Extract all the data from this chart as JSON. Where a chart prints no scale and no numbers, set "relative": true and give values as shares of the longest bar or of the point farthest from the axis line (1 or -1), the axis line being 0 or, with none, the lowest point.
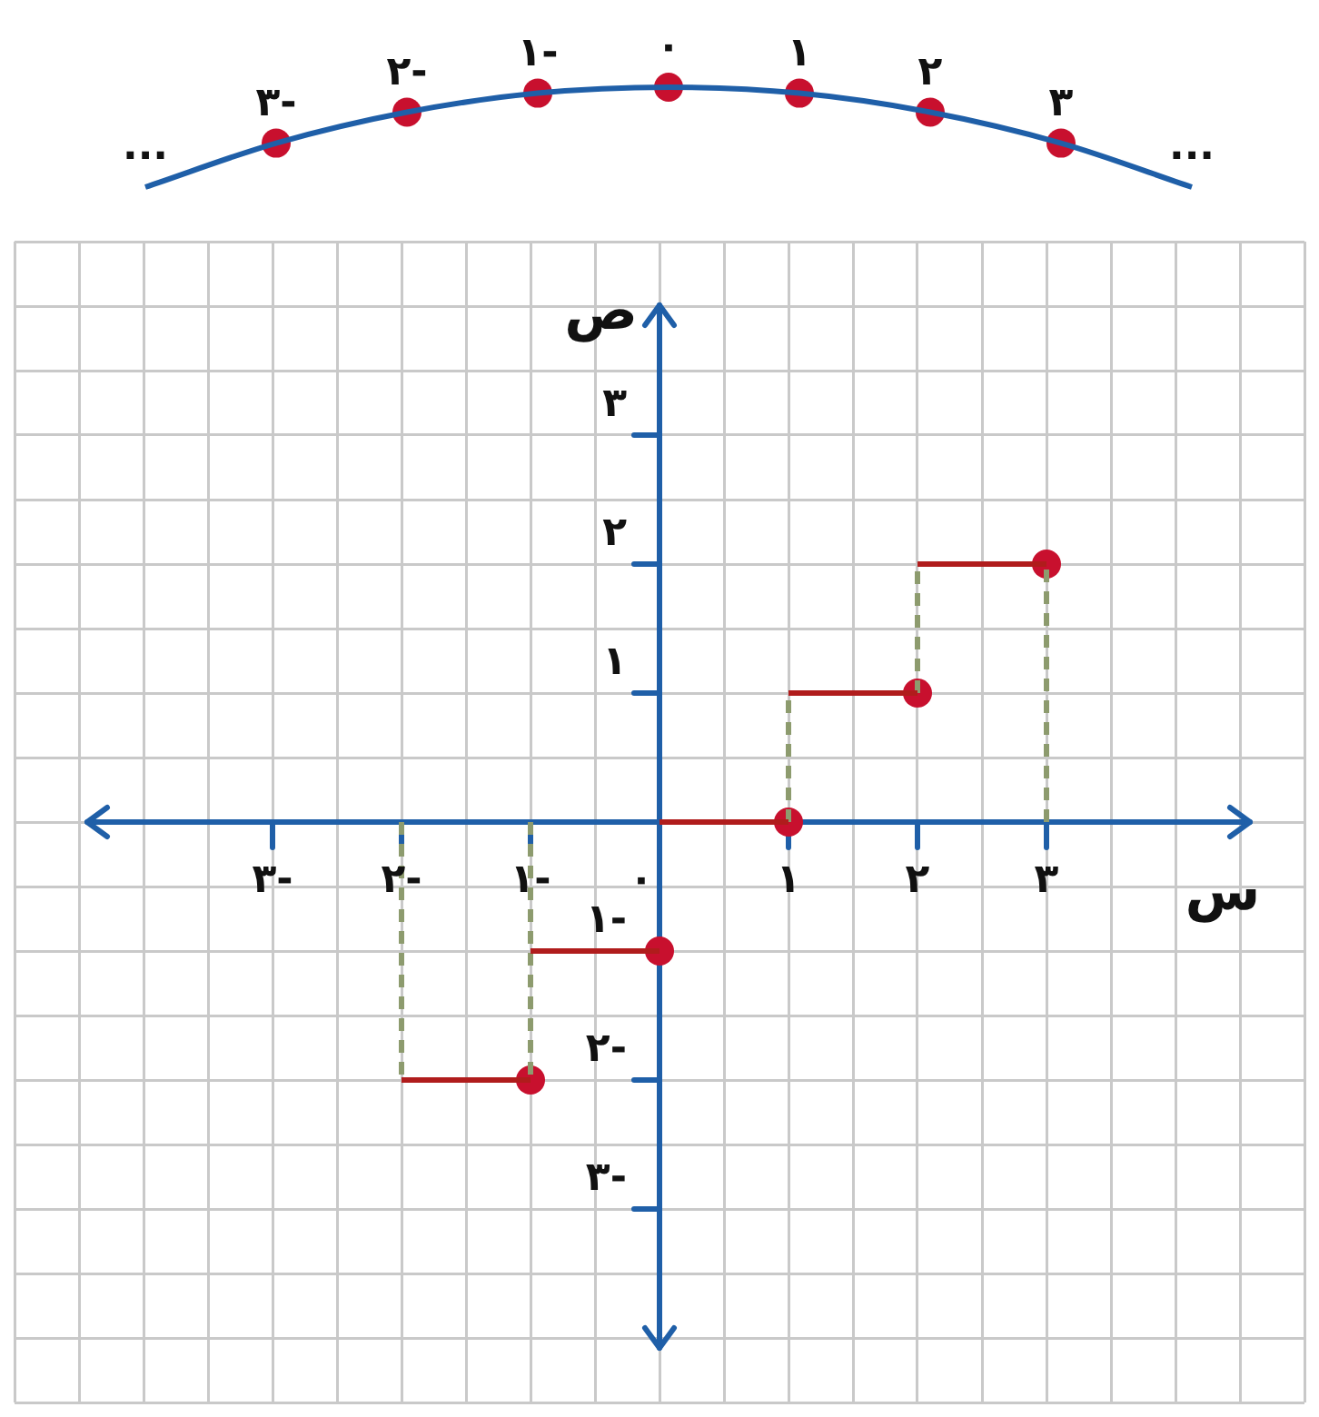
{
  "chart_data": [
    {
      "type": "line",
      "relative": true,
      "categories": [
        "...",
        "٣-",
        "٢-",
        "١-",
        "٠",
        "١",
        "٢",
        "٣",
        "..."
      ],
      "series": [
        {
          "values": [
            0,
            0.44,
            0.75,
            0.94,
            1,
            0.94,
            0.75,
            0.44,
            0
          ],
          "color": "#1f5fa8",
          "marker": "none"
        },
        {
          "type": "scatter",
          "values": [
            null,
            0.44,
            0.75,
            0.94,
            1,
            0.94,
            0.75,
            0.44,
            null
          ],
          "color": "#c8102e",
          "marker": "circle"
        }
      ]
    },
    {
      "type": "line",
      "xlabel": "س",
      "ylabel": "ص",
      "xlim": [
        -5,
        5
      ],
      "ylim": [
        -4.5,
        4.5
      ],
      "xticks": [
        {
          "value": -5,
          "label": null
        },
        {
          "value": -4.5,
          "label": null
        },
        {
          "value": -4,
          "label": null
        },
        {
          "value": -3.5,
          "label": null
        },
        {
          "value": -3,
          "label": "٣-"
        },
        {
          "value": -2.5,
          "label": null
        },
        {
          "value": -2,
          "label": "٢-"
        },
        {
          "value": -1.5,
          "label": null
        },
        {
          "value": -1,
          "label": "١-"
        },
        {
          "value": -0.5,
          "label": null
        },
        {
          "value": 0,
          "label": "٠"
        },
        {
          "value": 0.5,
          "label": null
        },
        {
          "value": 1,
          "label": "١"
        },
        {
          "value": 1.5,
          "label": null
        },
        {
          "value": 2,
          "label": "٢"
        },
        {
          "value": 2.5,
          "label": null
        },
        {
          "value": 3,
          "label": "٣"
        },
        {
          "value": 3.5,
          "label": null
        },
        {
          "value": 4,
          "label": null
        },
        {
          "value": 4.5,
          "label": null
        },
        {
          "value": 5,
          "label": null
        }
      ],
      "yticks": [
        {
          "value": -4.5,
          "label": null
        },
        {
          "value": -4,
          "label": null
        },
        {
          "value": -3.5,
          "label": null
        },
        {
          "value": -3,
          "label": "٣-"
        },
        {
          "value": -2.5,
          "label": null
        },
        {
          "value": -2,
          "label": "٢-"
        },
        {
          "value": -1.5,
          "label": null
        },
        {
          "value": -1,
          "label": "١-"
        },
        {
          "value": -0.5,
          "label": null
        },
        {
          "value": 0,
          "label": null
        },
        {
          "value": 0.5,
          "label": null
        },
        {
          "value": 1,
          "label": "١"
        },
        {
          "value": 1.5,
          "label": null
        },
        {
          "value": 2,
          "label": "٢"
        },
        {
          "value": 2.5,
          "label": null
        },
        {
          "value": 3,
          "label": "٣"
        },
        {
          "value": 3.5,
          "label": null
        },
        {
          "value": 4,
          "label": null
        },
        {
          "value": 4.5,
          "label": null
        }
      ],
      "grid": true,
      "legend": false,
      "series": [
        {
          "type": "line",
          "x": [
            -2,
            -1
          ],
          "values": [
            -2,
            -2
          ],
          "color": "#b01c1c",
          "marker": "none",
          "line_style": "solid"
        },
        {
          "type": "line",
          "x": [
            -1,
            0
          ],
          "values": [
            -1,
            -1
          ],
          "color": "#b01c1c",
          "marker": "none",
          "line_style": "solid"
        },
        {
          "type": "line",
          "x": [
            0,
            1
          ],
          "values": [
            0,
            0
          ],
          "color": "#b01c1c",
          "marker": "none",
          "line_style": "solid"
        },
        {
          "type": "line",
          "x": [
            1,
            2
          ],
          "values": [
            1,
            1
          ],
          "color": "#b01c1c",
          "marker": "none",
          "line_style": "solid"
        },
        {
          "type": "line",
          "x": [
            2,
            3
          ],
          "values": [
            2,
            2
          ],
          "color": "#b01c1c",
          "marker": "none",
          "line_style": "solid"
        },
        {
          "type": "line",
          "x": [
            -2,
            -2
          ],
          "values": [
            0,
            -2
          ],
          "color": "#8d9b6e",
          "marker": "none",
          "line_style": "dashed"
        },
        {
          "type": "line",
          "x": [
            -1,
            -1
          ],
          "values": [
            0,
            -2
          ],
          "color": "#8d9b6e",
          "marker": "none",
          "line_style": "dashed"
        },
        {
          "type": "line",
          "x": [
            1,
            1
          ],
          "values": [
            0,
            1
          ],
          "color": "#8d9b6e",
          "marker": "none",
          "line_style": "dashed"
        },
        {
          "type": "line",
          "x": [
            2,
            2
          ],
          "values": [
            1,
            2
          ],
          "color": "#8d9b6e",
          "marker": "none",
          "line_style": "dashed"
        },
        {
          "type": "line",
          "x": [
            3,
            3
          ],
          "values": [
            0,
            2
          ],
          "color": "#8d9b6e",
          "marker": "none",
          "line_style": "dashed"
        },
        {
          "type": "scatter",
          "x": [
            -1,
            0,
            1,
            2,
            3
          ],
          "values": [
            -2,
            -1,
            0,
            1,
            2
          ],
          "color": "#c8102e",
          "marker": "circle"
        }
      ]
    }
  ]
}
